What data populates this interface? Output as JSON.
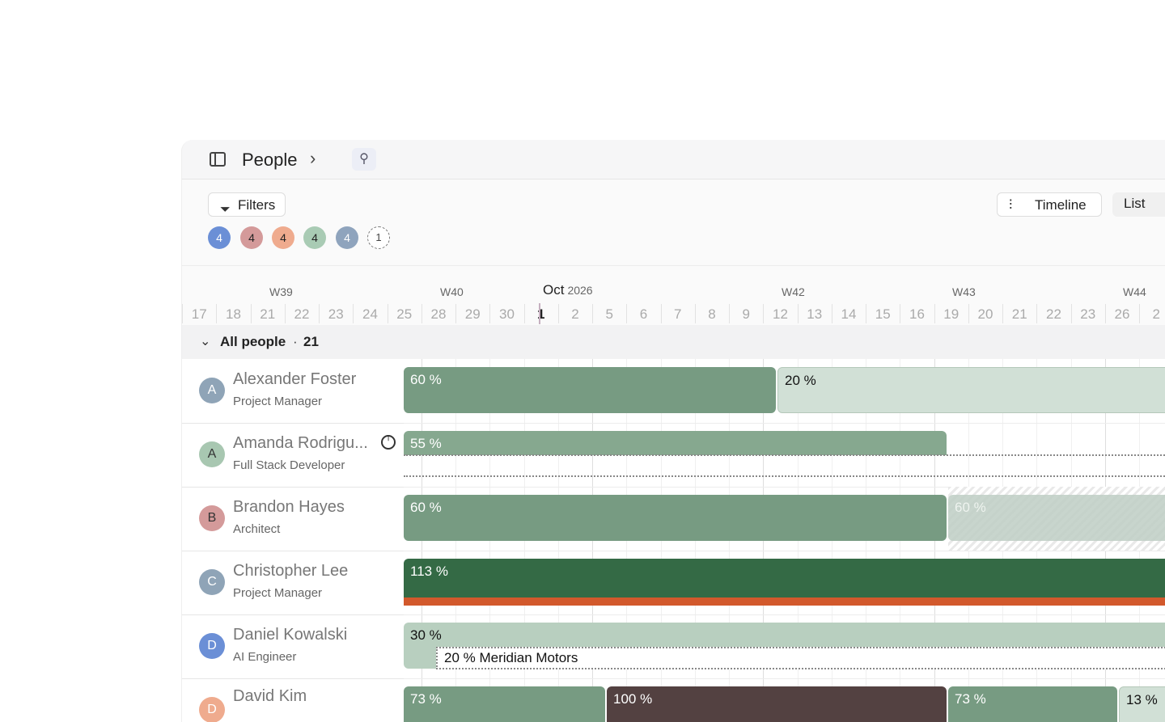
{
  "breadcrumb": {
    "title": "People"
  },
  "toolbar": {
    "filters_label": "Filters",
    "timeline_label": "Timeline",
    "list_label": "List"
  },
  "filter_badges": [
    {
      "count": "4",
      "color": "#6b8fd6",
      "text_color": "#ffffff"
    },
    {
      "count": "4",
      "color": "#d49a9a",
      "text_color": "#222222"
    },
    {
      "count": "4",
      "color": "#efab8e",
      "text_color": "#222222"
    },
    {
      "count": "4",
      "color": "#a9cbb4",
      "text_color": "#222222"
    },
    {
      "count": "4",
      "color": "#8fa4bd",
      "text_color": "#ffffff"
    },
    {
      "count": "1",
      "dashed": true
    }
  ],
  "calendar": {
    "month": "Oct",
    "year": "2026",
    "weeks": [
      "W39",
      "W40",
      "W42",
      "W43",
      "W44"
    ],
    "days": [
      "6",
      "17",
      "18",
      "21",
      "22",
      "23",
      "24",
      "25",
      "28",
      "29",
      "30",
      "1",
      "2",
      "5",
      "6",
      "7",
      "8",
      "9",
      "12",
      "13",
      "14",
      "15",
      "16",
      "19",
      "20",
      "21",
      "22",
      "23",
      "26",
      "2"
    ],
    "today": "1"
  },
  "group": {
    "label": "All people",
    "separator": "·",
    "count": "21"
  },
  "people": [
    {
      "initial": "A",
      "name": "Alexander Foster",
      "role": "Project Manager",
      "avatar_color": "#8fa4b7"
    },
    {
      "initial": "A",
      "name": "Amanda Rodrigu...",
      "role": "Full Stack Developer",
      "avatar_color": "#a8c7b1",
      "initial_color": "#333333",
      "has_clock": true
    },
    {
      "initial": "B",
      "name": "Brandon Hayes",
      "role": "Architect",
      "avatar_color": "#d49a9a",
      "initial_color": "#333333"
    },
    {
      "initial": "C",
      "name": "Christopher Lee",
      "role": "Project Manager",
      "avatar_color": "#8fa4b7"
    },
    {
      "initial": "D",
      "name": "Daniel Kowalski",
      "role": "AI Engineer",
      "avatar_color": "#6b8fd6"
    },
    {
      "initial": "D",
      "name": "David Kim",
      "role": "",
      "avatar_color": "#efab8e"
    }
  ],
  "allocations": {
    "alexander_1": "60 %",
    "alexander_2": "20 %",
    "amanda_1": "55 %",
    "brandon_1": "60 %",
    "brandon_2": "60 %",
    "christopher_1": "113 %",
    "daniel_1": "30 %",
    "daniel_2": "20 % Meridian Motors",
    "david_1": "73 %",
    "david_2": "100 %",
    "david_3": "73 %",
    "david_4": "13 %"
  },
  "colors": {
    "bar_green": "#779b82",
    "bar_light": "#d1e0d6",
    "bar_mid": "#86a88f",
    "bar_dark": "#346a45",
    "overallocation": "#d2592c",
    "bar_brown": "#534141",
    "bar_pale": "#b8cfbf"
  }
}
